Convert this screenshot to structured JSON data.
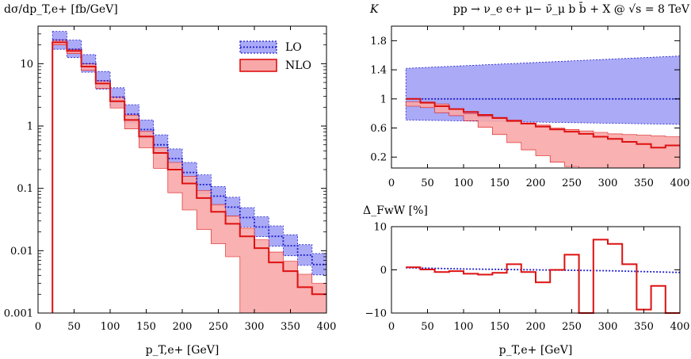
{
  "colors": {
    "lo_fill": "#aaaaf6",
    "lo_line": "#1d1dcc",
    "nlo_fill": "#f8a8a8",
    "nlo_line": "#dd1111"
  },
  "chart_data": [
    {
      "id": "main",
      "type": "line",
      "title": "",
      "ylabel": "dσ/dp_T,e+ [fb/GeV]",
      "xlabel": "p_T,e+ [GeV]",
      "xlim": [
        0,
        400
      ],
      "ylim": [
        0.001,
        40
      ],
      "yscale": "log",
      "xticks": [
        0,
        50,
        100,
        150,
        200,
        250,
        300,
        350,
        400
      ],
      "yticks": [
        {
          "value": 0.001,
          "label": "0.001"
        },
        {
          "value": 0.01,
          "label": "0.01"
        },
        {
          "value": 0.1,
          "label": "0.1"
        },
        {
          "value": 1,
          "label": "1"
        },
        {
          "value": 10,
          "label": "10"
        }
      ],
      "legend": {
        "position": "top-right",
        "entries": [
          "LO",
          "NLO"
        ]
      },
      "bin_edges": [
        20,
        40,
        60,
        80,
        100,
        120,
        140,
        160,
        180,
        200,
        220,
        240,
        260,
        280,
        300,
        320,
        340,
        360,
        380,
        400
      ],
      "series": [
        {
          "name": "LO",
          "central": [
            24,
            17,
            10,
            5.3,
            2.9,
            1.55,
            0.88,
            0.5,
            0.3,
            0.18,
            0.115,
            0.075,
            0.05,
            0.034,
            0.024,
            0.017,
            0.012,
            0.0085,
            0.006
          ],
          "upper": [
            33,
            24,
            14,
            7.5,
            4.1,
            2.2,
            1.25,
            0.72,
            0.43,
            0.26,
            0.165,
            0.107,
            0.072,
            0.049,
            0.035,
            0.025,
            0.018,
            0.0125,
            0.009
          ],
          "lower": [
            17,
            12.5,
            7.3,
            3.9,
            2.1,
            1.12,
            0.64,
            0.36,
            0.215,
            0.13,
            0.082,
            0.053,
            0.035,
            0.024,
            0.0168,
            0.0118,
            0.0083,
            0.0058,
            0.0041
          ]
        },
        {
          "name": "NLO",
          "central": [
            22,
            16,
            9,
            4.8,
            2.5,
            1.25,
            0.68,
            0.37,
            0.2,
            0.12,
            0.07,
            0.042,
            0.027,
            0.017,
            0.011,
            0.0065,
            0.0047,
            0.0026,
            0.002
          ],
          "upper": [
            24,
            17,
            10,
            5.3,
            2.9,
            1.5,
            0.82,
            0.45,
            0.26,
            0.155,
            0.092,
            0.055,
            0.036,
            0.023,
            0.015,
            0.0095,
            0.0068,
            0.0042,
            0.003
          ],
          "lower": [
            20,
            14.5,
            7.8,
            4.0,
            1.95,
            0.9,
            0.45,
            0.21,
            0.085,
            0.045,
            0.022,
            0.013,
            0.008,
            0.001,
            0.001,
            0.001,
            0.001,
            0.001,
            0.001
          ]
        }
      ]
    },
    {
      "id": "kfactor",
      "type": "line",
      "title": "pp → ν_e e+ μ− ν̄_μ b b̄ + X @ √s = 8 TeV",
      "ylabel": "K",
      "xlabel": "",
      "xlim": [
        0,
        400
      ],
      "ylim": [
        0.05,
        2.0
      ],
      "xticks": [
        0,
        50,
        100,
        150,
        200,
        250,
        300,
        350,
        400
      ],
      "yticks": [
        {
          "value": 0.2,
          "label": "0.2"
        },
        {
          "value": 0.6,
          "label": "0.6"
        },
        {
          "value": 1,
          "label": "1"
        },
        {
          "value": 1.4,
          "label": "1.4"
        },
        {
          "value": 1.8,
          "label": "1.8"
        }
      ],
      "bin_edges": [
        20,
        40,
        60,
        80,
        100,
        120,
        140,
        160,
        180,
        200,
        220,
        240,
        260,
        280,
        300,
        320,
        340,
        360,
        380,
        400
      ],
      "series": [
        {
          "name": "LO",
          "central_value": 1.0,
          "band_x": [
            20,
            400
          ],
          "band_upper": [
            1.42,
            1.59
          ],
          "band_lower": [
            0.71,
            0.65
          ]
        },
        {
          "name": "NLO",
          "central": [
            1.0,
            0.95,
            0.9,
            0.86,
            0.82,
            0.78,
            0.74,
            0.7,
            0.66,
            0.62,
            0.58,
            0.55,
            0.52,
            0.48,
            0.45,
            0.41,
            0.38,
            0.33,
            0.36
          ],
          "upper": [
            0.96,
            0.94,
            0.93,
            0.86,
            0.8,
            0.76,
            0.73,
            0.69,
            0.67,
            0.64,
            0.6,
            0.58,
            0.56,
            0.54,
            0.52,
            0.51,
            0.5,
            0.49,
            0.48
          ],
          "lower": [
            0.9,
            0.88,
            0.81,
            0.77,
            0.7,
            0.61,
            0.51,
            0.4,
            0.3,
            0.22,
            0.13,
            0.07,
            0.03,
            0.0,
            0.0,
            0.0,
            0.0,
            0.0,
            0.0
          ]
        }
      ]
    },
    {
      "id": "fww",
      "type": "line",
      "title": "",
      "ylabel": "Δ_FwW [%]",
      "xlabel": "p_T,e+ [GeV]",
      "xlim": [
        0,
        400
      ],
      "ylim": [
        -10,
        10
      ],
      "xticks": [
        0,
        50,
        100,
        150,
        200,
        250,
        300,
        350,
        400
      ],
      "yticks": [
        {
          "value": -10,
          "label": "−10"
        },
        {
          "value": 0,
          "label": "0"
        },
        {
          "value": 10,
          "label": "10"
        }
      ],
      "bin_edges": [
        20,
        40,
        60,
        80,
        100,
        120,
        140,
        160,
        180,
        200,
        220,
        240,
        260,
        280,
        300,
        320,
        340,
        360,
        380,
        400
      ],
      "series": [
        {
          "name": "LO",
          "x": [
            20,
            100,
            200,
            300,
            350,
            400
          ],
          "values": [
            0.5,
            0.2,
            0.0,
            -0.2,
            -0.4,
            -0.6
          ]
        },
        {
          "name": "NLO",
          "values": [
            0.6,
            0.1,
            -0.5,
            -0.3,
            -0.9,
            -1.1,
            -0.7,
            1.3,
            -0.5,
            -2.9,
            0.0,
            3.5,
            -10.5,
            7.0,
            6.0,
            1.3,
            -9.2,
            -3.7,
            -12
          ]
        }
      ]
    }
  ]
}
